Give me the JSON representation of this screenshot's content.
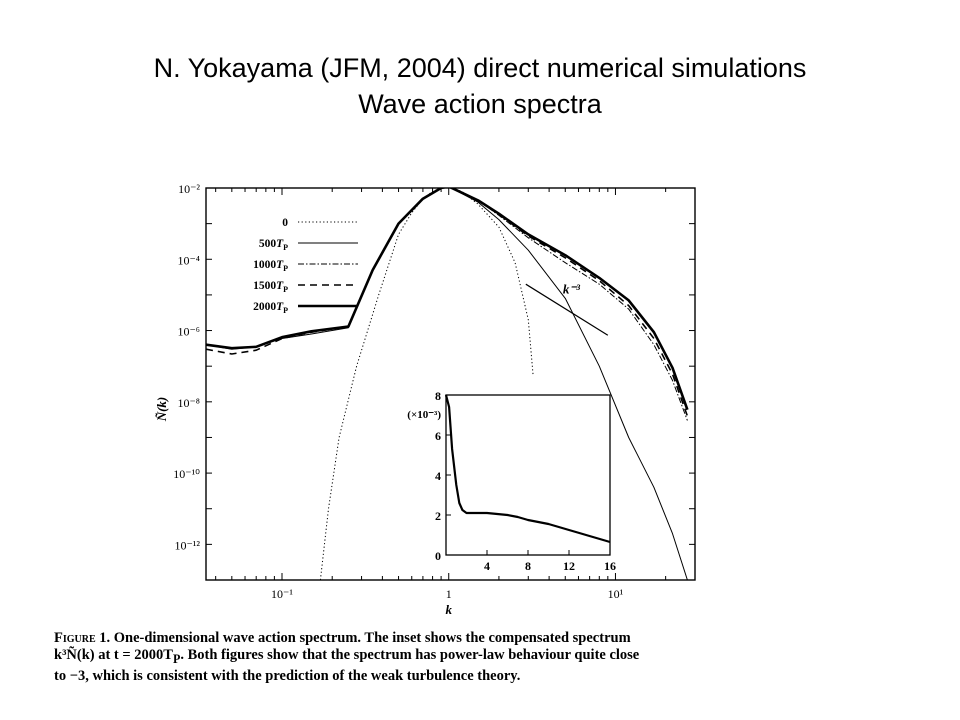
{
  "slide": {
    "title_line1": "N. Yokayama (JFM, 2004) direct numerical simulations",
    "title_line2": "Wave action spectra"
  },
  "chart_data": [
    {
      "type": "line",
      "panel": "main",
      "xscale": "log",
      "yscale": "log",
      "xlim": [
        0.035,
        30
      ],
      "ylim": [
        1e-13,
        0.01
      ],
      "xlabel": "k",
      "ylabel": "Ñ(k)",
      "xticks": [
        0.1,
        1,
        10
      ],
      "xtick_labels": [
        "10⁻¹",
        "1",
        "10¹"
      ],
      "yticks": [
        0.01,
        0.0001,
        1e-06,
        1e-08,
        1e-10,
        1e-12
      ],
      "ytick_labels": [
        "10⁻²",
        "10⁻⁴",
        "10⁻⁶",
        "10⁻⁸",
        "10⁻¹⁰",
        "10⁻¹²"
      ],
      "legend": {
        "placement": "top-left",
        "entries": [
          {
            "label": "0",
            "style": "dotted"
          },
          {
            "label": "500T_P",
            "style": "solid-thin"
          },
          {
            "label": "1000T_P",
            "style": "dash-dot"
          },
          {
            "label": "1500T_P",
            "style": "dashed"
          },
          {
            "label": "2000T_P",
            "style": "solid-thick"
          }
        ]
      },
      "annotation": {
        "text": "k⁻³",
        "x": [
          2.9,
          9
        ],
        "y": [
          2e-05,
          7.4e-07
        ]
      },
      "series": [
        {
          "name": "0",
          "style": "dotted",
          "x": [
            0.17,
            0.19,
            0.22,
            0.28,
            0.38,
            0.5,
            0.6,
            0.7,
            0.8,
            0.9,
            1.0,
            1.2,
            1.5,
            2.0,
            2.5,
            3.0,
            3.2
          ],
          "y": [
            1e-13,
            1e-11,
            1e-09,
            1e-07,
            1e-05,
            0.0005,
            0.002,
            0.005,
            0.008,
            0.01,
            0.011,
            0.008,
            0.0035,
            0.0008,
            8e-05,
            2e-06,
            6e-08
          ]
        },
        {
          "name": "500T_P",
          "style": "solid-thin",
          "x": [
            0.035,
            0.05,
            0.07,
            0.1,
            0.15,
            0.25,
            0.35,
            0.5,
            0.7,
            0.9,
            1.0,
            1.5,
            2.0,
            3.0,
            5.0,
            8.0,
            12.0,
            17.0,
            22.0,
            27.0
          ],
          "y": [
            4e-07,
            3e-07,
            3.5e-07,
            6e-07,
            8e-07,
            1.2e-06,
            5e-05,
            0.001,
            0.005,
            0.01,
            0.011,
            0.004,
            0.0013,
            0.00018,
            8e-06,
            1e-07,
            1e-09,
            4e-11,
            2e-12,
            1e-13
          ]
        },
        {
          "name": "1000T_P",
          "style": "dash-dot",
          "x": [
            0.035,
            0.05,
            0.07,
            0.1,
            0.15,
            0.25,
            0.35,
            0.5,
            0.7,
            0.9,
            1.0,
            1.5,
            2.0,
            3.0,
            5.0,
            8.0,
            12.0,
            17.0,
            22.0,
            27.0
          ],
          "y": [
            4e-07,
            3.2e-07,
            3.5e-07,
            6.5e-07,
            9e-07,
            1.3e-06,
            5e-05,
            0.001,
            0.005,
            0.01,
            0.011,
            0.0045,
            0.0017,
            0.0004,
            8e-05,
            2e-05,
            4e-06,
            4e-07,
            4e-08,
            3e-09
          ]
        },
        {
          "name": "1500T_P",
          "style": "dashed",
          "x": [
            0.035,
            0.05,
            0.07,
            0.1,
            0.15,
            0.25,
            0.35,
            0.5,
            0.7,
            0.9,
            1.0,
            1.5,
            2.0,
            3.0,
            5.0,
            8.0,
            12.0,
            17.0,
            22.0,
            27.0
          ],
          "y": [
            3e-07,
            2.2e-07,
            2.8e-07,
            6e-07,
            9e-07,
            1.3e-06,
            5e-05,
            0.001,
            0.005,
            0.01,
            0.011,
            0.0045,
            0.0018,
            0.00045,
            0.00011,
            2.5e-05,
            5e-06,
            6e-07,
            6e-08,
            4e-09
          ]
        },
        {
          "name": "2000T_P",
          "style": "solid-thick",
          "x": [
            0.035,
            0.05,
            0.07,
            0.1,
            0.15,
            0.25,
            0.35,
            0.5,
            0.7,
            0.9,
            1.0,
            1.5,
            2.0,
            3.0,
            5.0,
            8.0,
            12.0,
            17.0,
            22.0,
            27.0
          ],
          "y": [
            4e-07,
            3.2e-07,
            3.5e-07,
            6.5e-07,
            9.5e-07,
            1.3e-06,
            5e-05,
            0.001,
            0.005,
            0.01,
            0.011,
            0.0045,
            0.0019,
            0.0005,
            0.00013,
            3e-05,
            7e-06,
            9e-07,
            9e-08,
            6e-09
          ]
        }
      ]
    },
    {
      "type": "line",
      "panel": "inset",
      "xlim": [
        0,
        16
      ],
      "ylim": [
        0,
        8
      ],
      "xticks": [
        0,
        4,
        8,
        12,
        16
      ],
      "yticks": [
        0,
        2,
        4,
        6,
        8
      ],
      "ylabel": "(×10⁻³)",
      "series": [
        {
          "name": "2000T_P",
          "x": [
            0,
            0.3,
            0.6,
            1.0,
            1.3,
            1.6,
            2.0,
            3.0,
            4.0,
            5.0,
            6.0,
            7.0,
            8.0,
            9.0,
            10.0,
            11.0,
            12.0,
            13.0,
            14.0,
            15.0,
            16.0
          ],
          "y": [
            8,
            7.4,
            5.3,
            3.5,
            2.6,
            2.25,
            2.1,
            2.1,
            2.1,
            2.05,
            2.0,
            1.9,
            1.75,
            1.65,
            1.55,
            1.4,
            1.25,
            1.1,
            0.95,
            0.8,
            0.65
          ]
        }
      ]
    }
  ],
  "caption": {
    "figure_label": "Figure",
    "line1": " 1. One-dimensional wave action spectrum. The inset shows the compensated spectrum",
    "line2": "k³Ñ(k) at t = 2000T",
    "line2_sub": "P",
    "line2_rest": ". Both figures show that the spectrum has power-law behaviour quite close",
    "line3": "to −3, which is consistent with the prediction of the weak turbulence theory."
  }
}
